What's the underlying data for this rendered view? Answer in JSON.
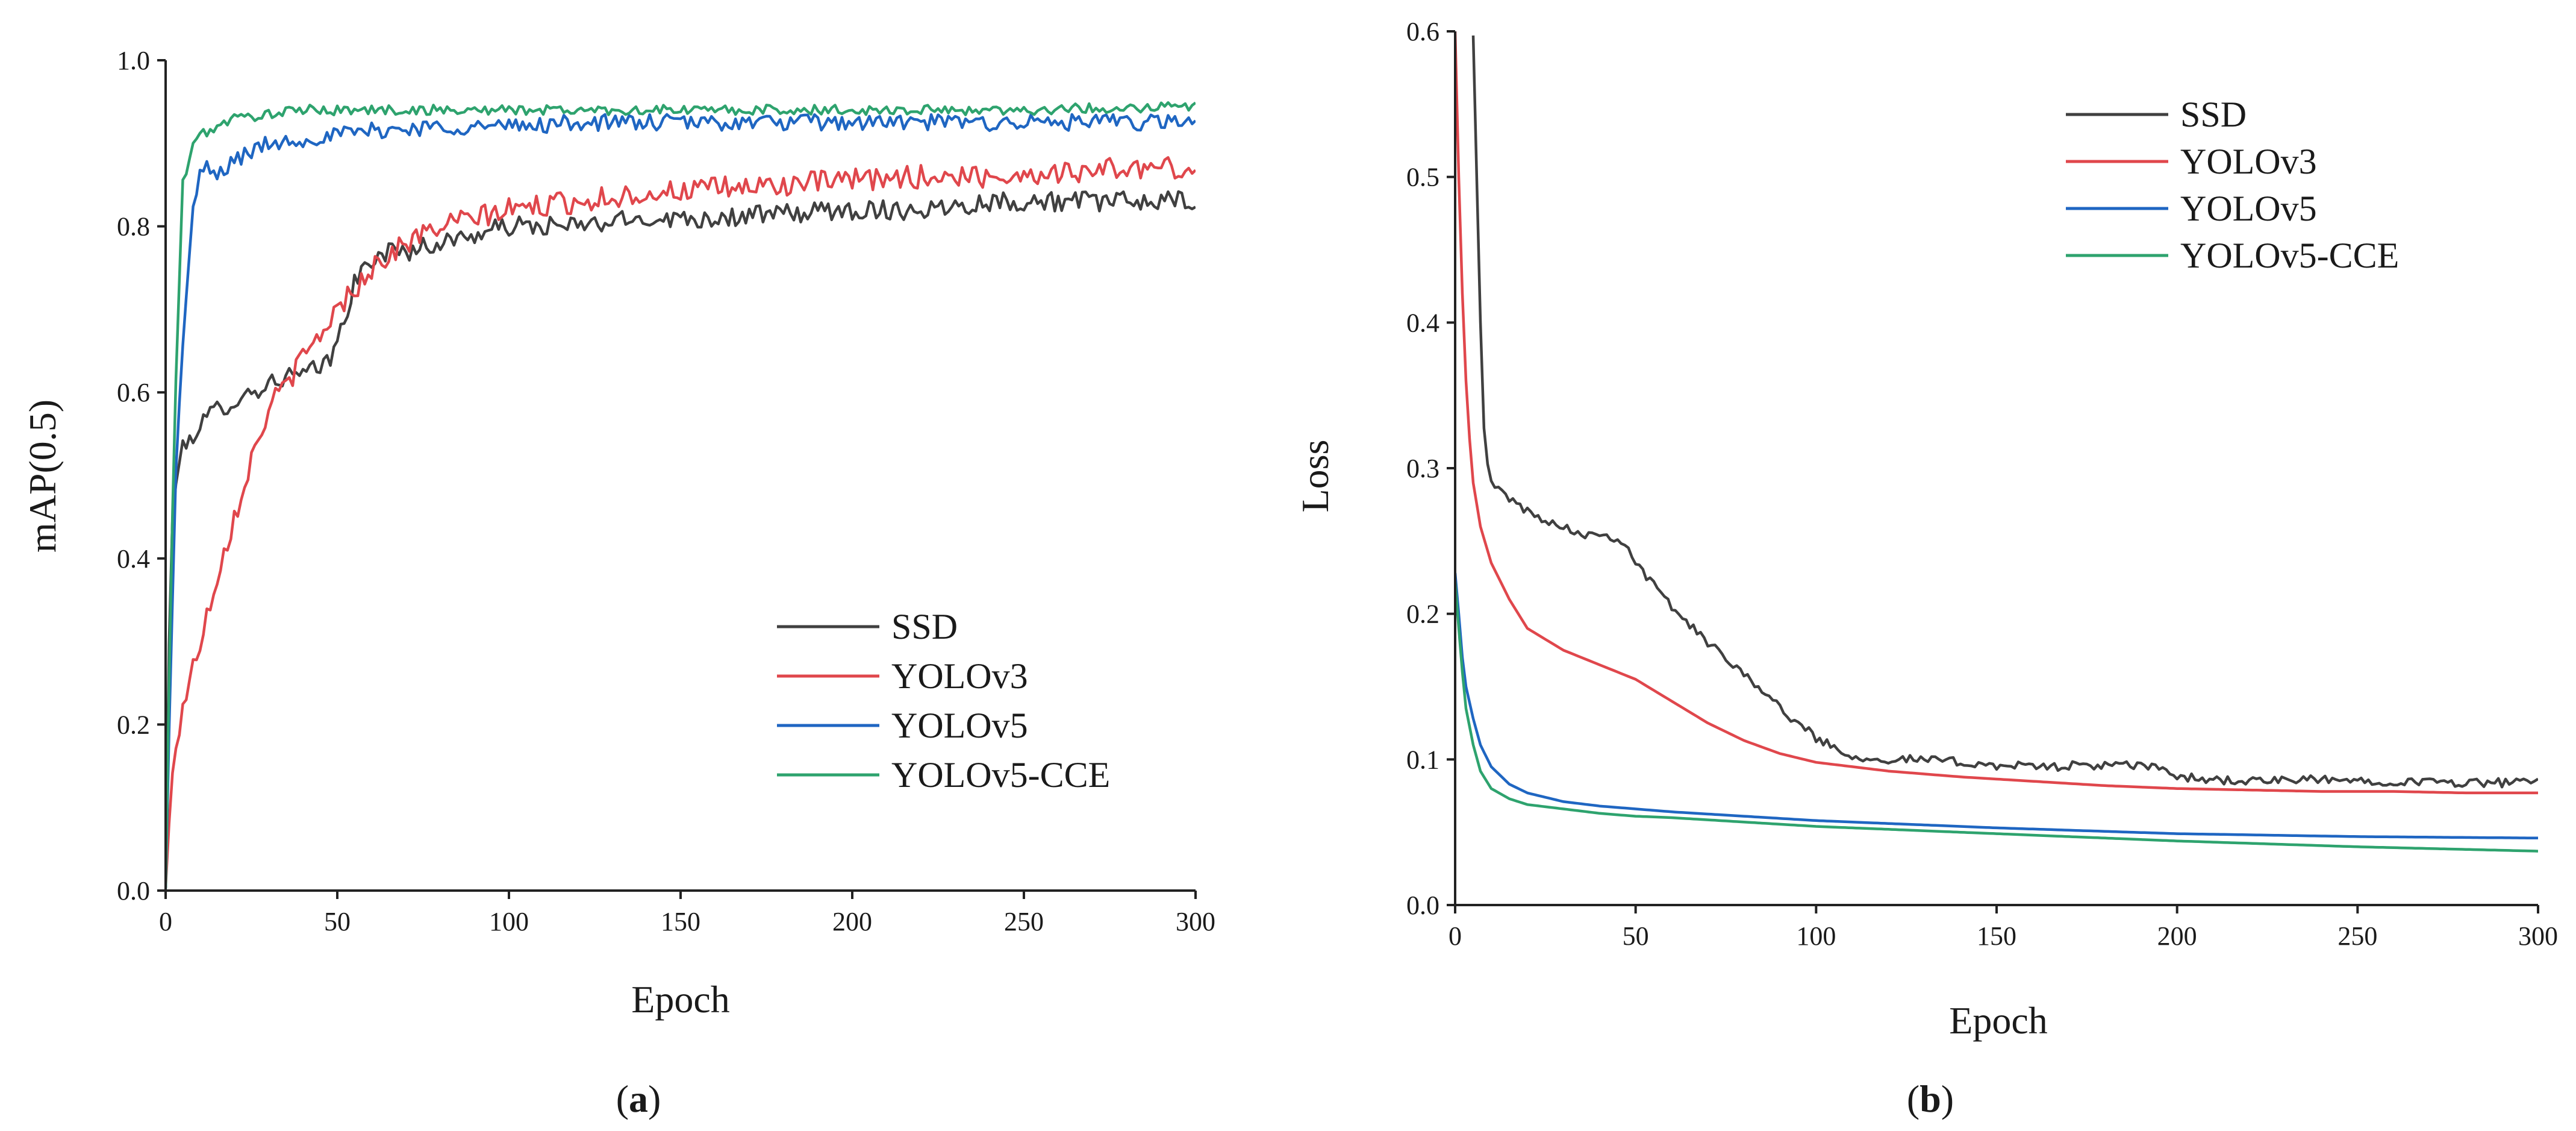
{
  "colors": {
    "SSD": "#404040",
    "YOLOv3": "#e0474c",
    "YOLOv5": "#1f66c2",
    "YOLOv5-CCE": "#2ea36e"
  },
  "chart_data": [
    {
      "id": "a",
      "type": "line",
      "panel_label": "a",
      "title": "",
      "xlabel": "Epoch",
      "ylabel": "mAP(0.5)",
      "xlim": [
        0,
        300
      ],
      "ylim": [
        0,
        1.0
      ],
      "xticks": [
        "0",
        "50",
        "100",
        "150",
        "200",
        "250",
        "300"
      ],
      "yticks": [
        "0.0",
        "0.2",
        "0.4",
        "0.6",
        "0.8",
        "1.0"
      ],
      "grid": false,
      "legend_position": "bottom-right",
      "series": [
        {
          "name": "SSD",
          "noise": 0.012,
          "x": [
            0,
            1,
            2,
            3,
            5,
            8,
            10,
            15,
            20,
            25,
            30,
            35,
            40,
            45,
            48,
            50,
            52,
            55,
            60,
            65,
            70,
            80,
            90,
            100,
            120,
            140,
            160,
            180,
            200,
            220,
            240,
            260,
            280,
            300
          ],
          "y": [
            0.0,
            0.3,
            0.44,
            0.5,
            0.53,
            0.55,
            0.56,
            0.58,
            0.59,
            0.6,
            0.61,
            0.62,
            0.62,
            0.63,
            0.64,
            0.66,
            0.69,
            0.73,
            0.76,
            0.77,
            0.77,
            0.78,
            0.79,
            0.8,
            0.8,
            0.81,
            0.81,
            0.815,
            0.82,
            0.82,
            0.83,
            0.83,
            0.83,
            0.83
          ]
        },
        {
          "name": "YOLOv3",
          "noise": 0.014,
          "x": [
            0,
            2,
            5,
            10,
            15,
            20,
            25,
            30,
            40,
            50,
            60,
            70,
            80,
            90,
            100,
            120,
            140,
            160,
            180,
            200,
            220,
            240,
            260,
            280,
            300
          ],
          "y": [
            0.0,
            0.15,
            0.22,
            0.3,
            0.38,
            0.45,
            0.52,
            0.58,
            0.64,
            0.7,
            0.75,
            0.78,
            0.8,
            0.81,
            0.82,
            0.83,
            0.84,
            0.845,
            0.85,
            0.855,
            0.86,
            0.86,
            0.865,
            0.87,
            0.87
          ]
        },
        {
          "name": "YOLOv5",
          "noise": 0.01,
          "x": [
            0,
            1,
            2,
            3,
            5,
            6,
            8,
            10,
            12,
            15,
            20,
            25,
            30,
            40,
            50,
            60,
            80,
            100,
            120,
            150,
            200,
            250,
            300
          ],
          "y": [
            0.0,
            0.2,
            0.35,
            0.5,
            0.66,
            0.72,
            0.82,
            0.86,
            0.87,
            0.86,
            0.88,
            0.89,
            0.9,
            0.905,
            0.91,
            0.915,
            0.92,
            0.92,
            0.925,
            0.925,
            0.925,
            0.925,
            0.925
          ]
        },
        {
          "name": "YOLOv5-CCE",
          "noise": 0.006,
          "x": [
            0,
            1,
            2,
            3,
            5,
            8,
            10,
            15,
            20,
            30,
            40,
            50,
            60,
            80,
            100,
            150,
            200,
            250,
            300
          ],
          "y": [
            0.0,
            0.25,
            0.45,
            0.62,
            0.85,
            0.9,
            0.91,
            0.92,
            0.93,
            0.935,
            0.94,
            0.94,
            0.94,
            0.94,
            0.94,
            0.94,
            0.94,
            0.94,
            0.945
          ]
        }
      ]
    },
    {
      "id": "b",
      "type": "line",
      "panel_label": "b",
      "title": "",
      "xlabel": "Epoch",
      "ylabel": "Loss",
      "xlim": [
        0,
        300
      ],
      "ylim": [
        0,
        0.6
      ],
      "xticks": [
        "0",
        "50",
        "100",
        "150",
        "200",
        "250",
        "300"
      ],
      "yticks": [
        "0.0",
        "0.1",
        "0.2",
        "0.3",
        "0.4",
        "0.5",
        "0.6"
      ],
      "grid": false,
      "legend_position": "top-right",
      "series": [
        {
          "name": "SSD",
          "noise": 0.003,
          "x": [
            5,
            6,
            7,
            8,
            9,
            10,
            12,
            15,
            20,
            25,
            30,
            35,
            40,
            45,
            48,
            50,
            55,
            60,
            70,
            80,
            90,
            100,
            110,
            120,
            130,
            140,
            150,
            160,
            180,
            195,
            200,
            210,
            220,
            240,
            260,
            280,
            300
          ],
          "y": [
            0.6,
            0.5,
            0.4,
            0.33,
            0.3,
            0.29,
            0.285,
            0.28,
            0.27,
            0.265,
            0.26,
            0.255,
            0.255,
            0.252,
            0.245,
            0.235,
            0.22,
            0.205,
            0.18,
            0.16,
            0.135,
            0.115,
            0.102,
            0.1,
            0.1,
            0.098,
            0.096,
            0.095,
            0.096,
            0.095,
            0.088,
            0.086,
            0.085,
            0.086,
            0.085,
            0.084,
            0.084
          ]
        },
        {
          "name": "YOLOv3",
          "noise": 0,
          "x": [
            0,
            1,
            2,
            3,
            4,
            5,
            7,
            10,
            15,
            20,
            30,
            40,
            50,
            60,
            70,
            80,
            90,
            100,
            120,
            140,
            160,
            180,
            200,
            220,
            240,
            260,
            280,
            300
          ],
          "y": [
            0.6,
            0.5,
            0.42,
            0.36,
            0.32,
            0.29,
            0.26,
            0.235,
            0.21,
            0.19,
            0.175,
            0.165,
            0.155,
            0.14,
            0.125,
            0.113,
            0.104,
            0.098,
            0.092,
            0.088,
            0.085,
            0.082,
            0.08,
            0.079,
            0.078,
            0.078,
            0.077,
            0.077
          ]
        },
        {
          "name": "YOLOv5",
          "noise": 0,
          "x": [
            0,
            1,
            2,
            3,
            5,
            7,
            10,
            15,
            20,
            30,
            40,
            50,
            60,
            80,
            100,
            150,
            200,
            250,
            300
          ],
          "y": [
            0.228,
            0.2,
            0.17,
            0.15,
            0.128,
            0.11,
            0.095,
            0.083,
            0.077,
            0.071,
            0.068,
            0.066,
            0.064,
            0.061,
            0.058,
            0.053,
            0.049,
            0.047,
            0.046
          ]
        },
        {
          "name": "YOLOv5-CCE",
          "noise": 0,
          "x": [
            0,
            1,
            2,
            3,
            5,
            7,
            10,
            15,
            20,
            30,
            40,
            50,
            60,
            80,
            100,
            150,
            200,
            250,
            300
          ],
          "y": [
            0.222,
            0.19,
            0.16,
            0.135,
            0.11,
            0.092,
            0.08,
            0.073,
            0.069,
            0.066,
            0.063,
            0.061,
            0.06,
            0.057,
            0.054,
            0.049,
            0.044,
            0.04,
            0.037
          ]
        }
      ]
    }
  ]
}
